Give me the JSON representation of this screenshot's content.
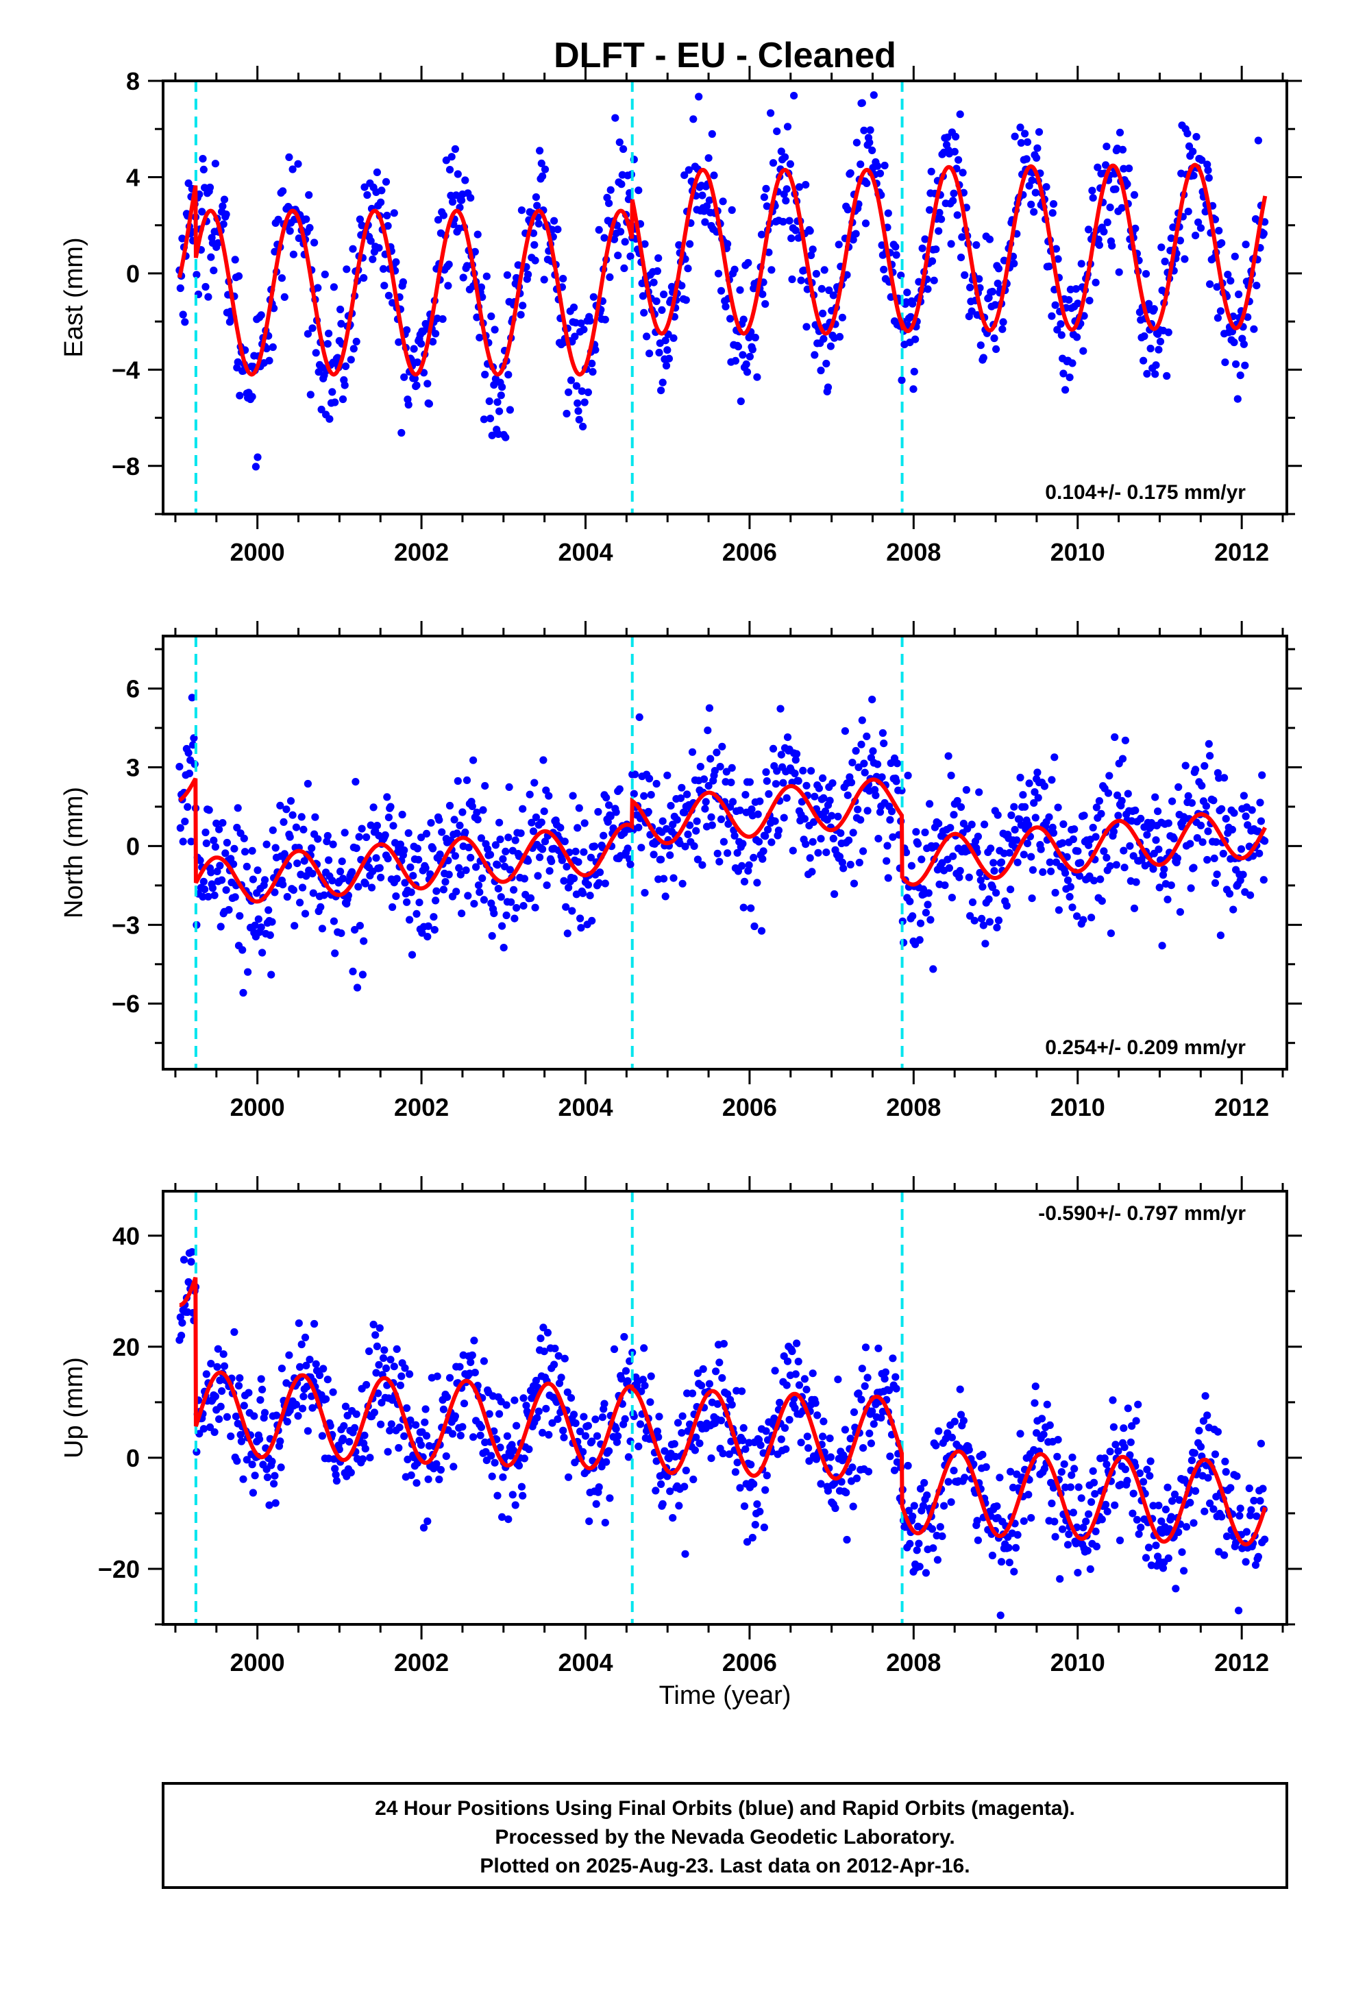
{
  "title": "DLFT  - EU - Cleaned",
  "xlabel": "Time (year)",
  "footer": {
    "line1": "24 Hour Positions Using Final Orbits (blue) and Rapid Orbits (magenta).",
    "line2": "Processed by the Nevada Geodetic Laboratory.",
    "line3": "Plotted on 2025-Aug-23. Last data on 2012-Apr-16."
  },
  "colors": {
    "points": "#0000ff",
    "model": "#ff0000",
    "offsets": "#00e5ee",
    "frame": "#000000"
  },
  "chart_data": [
    {
      "type": "scatter",
      "component": "East",
      "ylabel": "East (mm)",
      "xlim": [
        1998.85,
        2012.55
      ],
      "ylim": [
        -10,
        8
      ],
      "xticks": [
        2000,
        2002,
        2004,
        2006,
        2008,
        2010,
        2012
      ],
      "yticks": [
        -8,
        -4,
        0,
        4,
        8
      ],
      "rate_text": "0.104+/- 0.175 mm/yr",
      "rate_position": "bottom-right",
      "offset_epochs": [
        1999.25,
        2004.57,
        2007.86
      ],
      "data_range": [
        1999.05,
        2012.29
      ],
      "point_spread_mm": 1.4,
      "model": {
        "segments": [
          {
            "start": 1999.05,
            "end": 1999.25,
            "intercept": 2.3,
            "slope": 0
          },
          {
            "start": 1999.25,
            "end": 2004.57,
            "intercept": -0.8,
            "slope": 0
          },
          {
            "start": 2004.57,
            "end": 2007.86,
            "intercept": 0.9,
            "slope": 0
          },
          {
            "start": 2007.86,
            "end": 2012.29,
            "intercept": 1.0,
            "slope": 0.03
          }
        ],
        "annual_amplitude_mm": 3.4,
        "annual_peak_year_fraction": 0.43
      }
    },
    {
      "type": "scatter",
      "component": "North",
      "ylabel": "North (mm)",
      "xlim": [
        1998.85,
        2012.55
      ],
      "ylim": [
        -8.5,
        8
      ],
      "xticks": [
        2000,
        2002,
        2004,
        2006,
        2008,
        2010,
        2012
      ],
      "yticks": [
        -6,
        -3,
        0,
        3,
        6
      ],
      "rate_text": "0.254+/- 0.209 mm/yr",
      "rate_position": "bottom-right",
      "offset_epochs": [
        1999.25,
        2004.57,
        2007.86
      ],
      "data_range": [
        1999.05,
        2012.29
      ],
      "point_spread_mm": 1.3,
      "model": {
        "segments": [
          {
            "start": 1999.05,
            "end": 1999.25,
            "intercept": 2.6,
            "slope": 0
          },
          {
            "start": 1999.25,
            "end": 2004.57,
            "intercept": -1.4,
            "slope": 0.25
          },
          {
            "start": 2004.57,
            "end": 2007.86,
            "intercept": 0.9,
            "slope": 0.25
          },
          {
            "start": 2007.86,
            "end": 2012.29,
            "intercept": -0.6,
            "slope": 0.25
          }
        ],
        "annual_amplitude_mm": 0.9,
        "annual_peak_year_fraction": 0.5
      }
    },
    {
      "type": "scatter",
      "component": "Up",
      "ylabel": "Up (mm)",
      "xlim": [
        1998.85,
        2012.55
      ],
      "ylim": [
        -30,
        48
      ],
      "xticks": [
        2000,
        2002,
        2004,
        2006,
        2008,
        2010,
        2012
      ],
      "yticks": [
        -20,
        0,
        20,
        40
      ],
      "rate_text": "-0.590+/- 0.797 mm/yr",
      "rate_position": "top-right",
      "offset_epochs": [
        1999.25,
        2004.57,
        2007.86
      ],
      "data_range": [
        1999.05,
        2012.29
      ],
      "point_spread_mm": 5.5,
      "model": {
        "segments": [
          {
            "start": 1999.05,
            "end": 1999.25,
            "intercept": 35,
            "slope": 0
          },
          {
            "start": 1999.25,
            "end": 2004.57,
            "intercept": 8,
            "slope": -0.5
          },
          {
            "start": 2004.57,
            "end": 2007.86,
            "intercept": 5,
            "slope": -0.5
          },
          {
            "start": 2007.86,
            "end": 2012.29,
            "intercept": -6,
            "slope": -0.5
          }
        ],
        "annual_amplitude_mm": 7.5,
        "annual_peak_year_fraction": 0.55
      }
    }
  ]
}
